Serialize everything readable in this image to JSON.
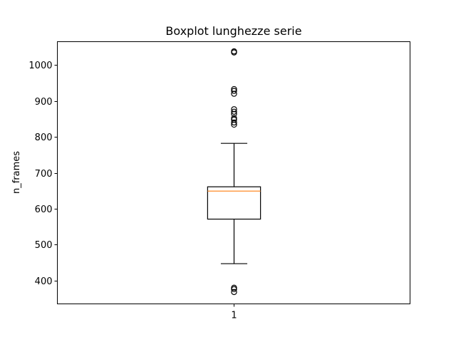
{
  "chart_data": {
    "type": "boxplot",
    "title": "Boxplot lunghezze serie",
    "xlabel": "",
    "ylabel": "n_frames",
    "categories": [
      "1"
    ],
    "yticks": [
      400,
      500,
      600,
      700,
      800,
      900,
      1000
    ],
    "ylim": [
      335,
      1065
    ],
    "grid": false,
    "boxes": [
      {
        "category": "1",
        "whisker_low": 447,
        "q1": 571,
        "median": 649,
        "q3": 661,
        "whisker_high": 782,
        "outliers": [
          368,
          376,
          380,
          834,
          840,
          848,
          852,
          864,
          870,
          877,
          920,
          928,
          933,
          1035,
          1038
        ]
      }
    ],
    "colors": {
      "box": "#000000",
      "median": "#ff7f0e",
      "outlier": "#000000"
    }
  }
}
